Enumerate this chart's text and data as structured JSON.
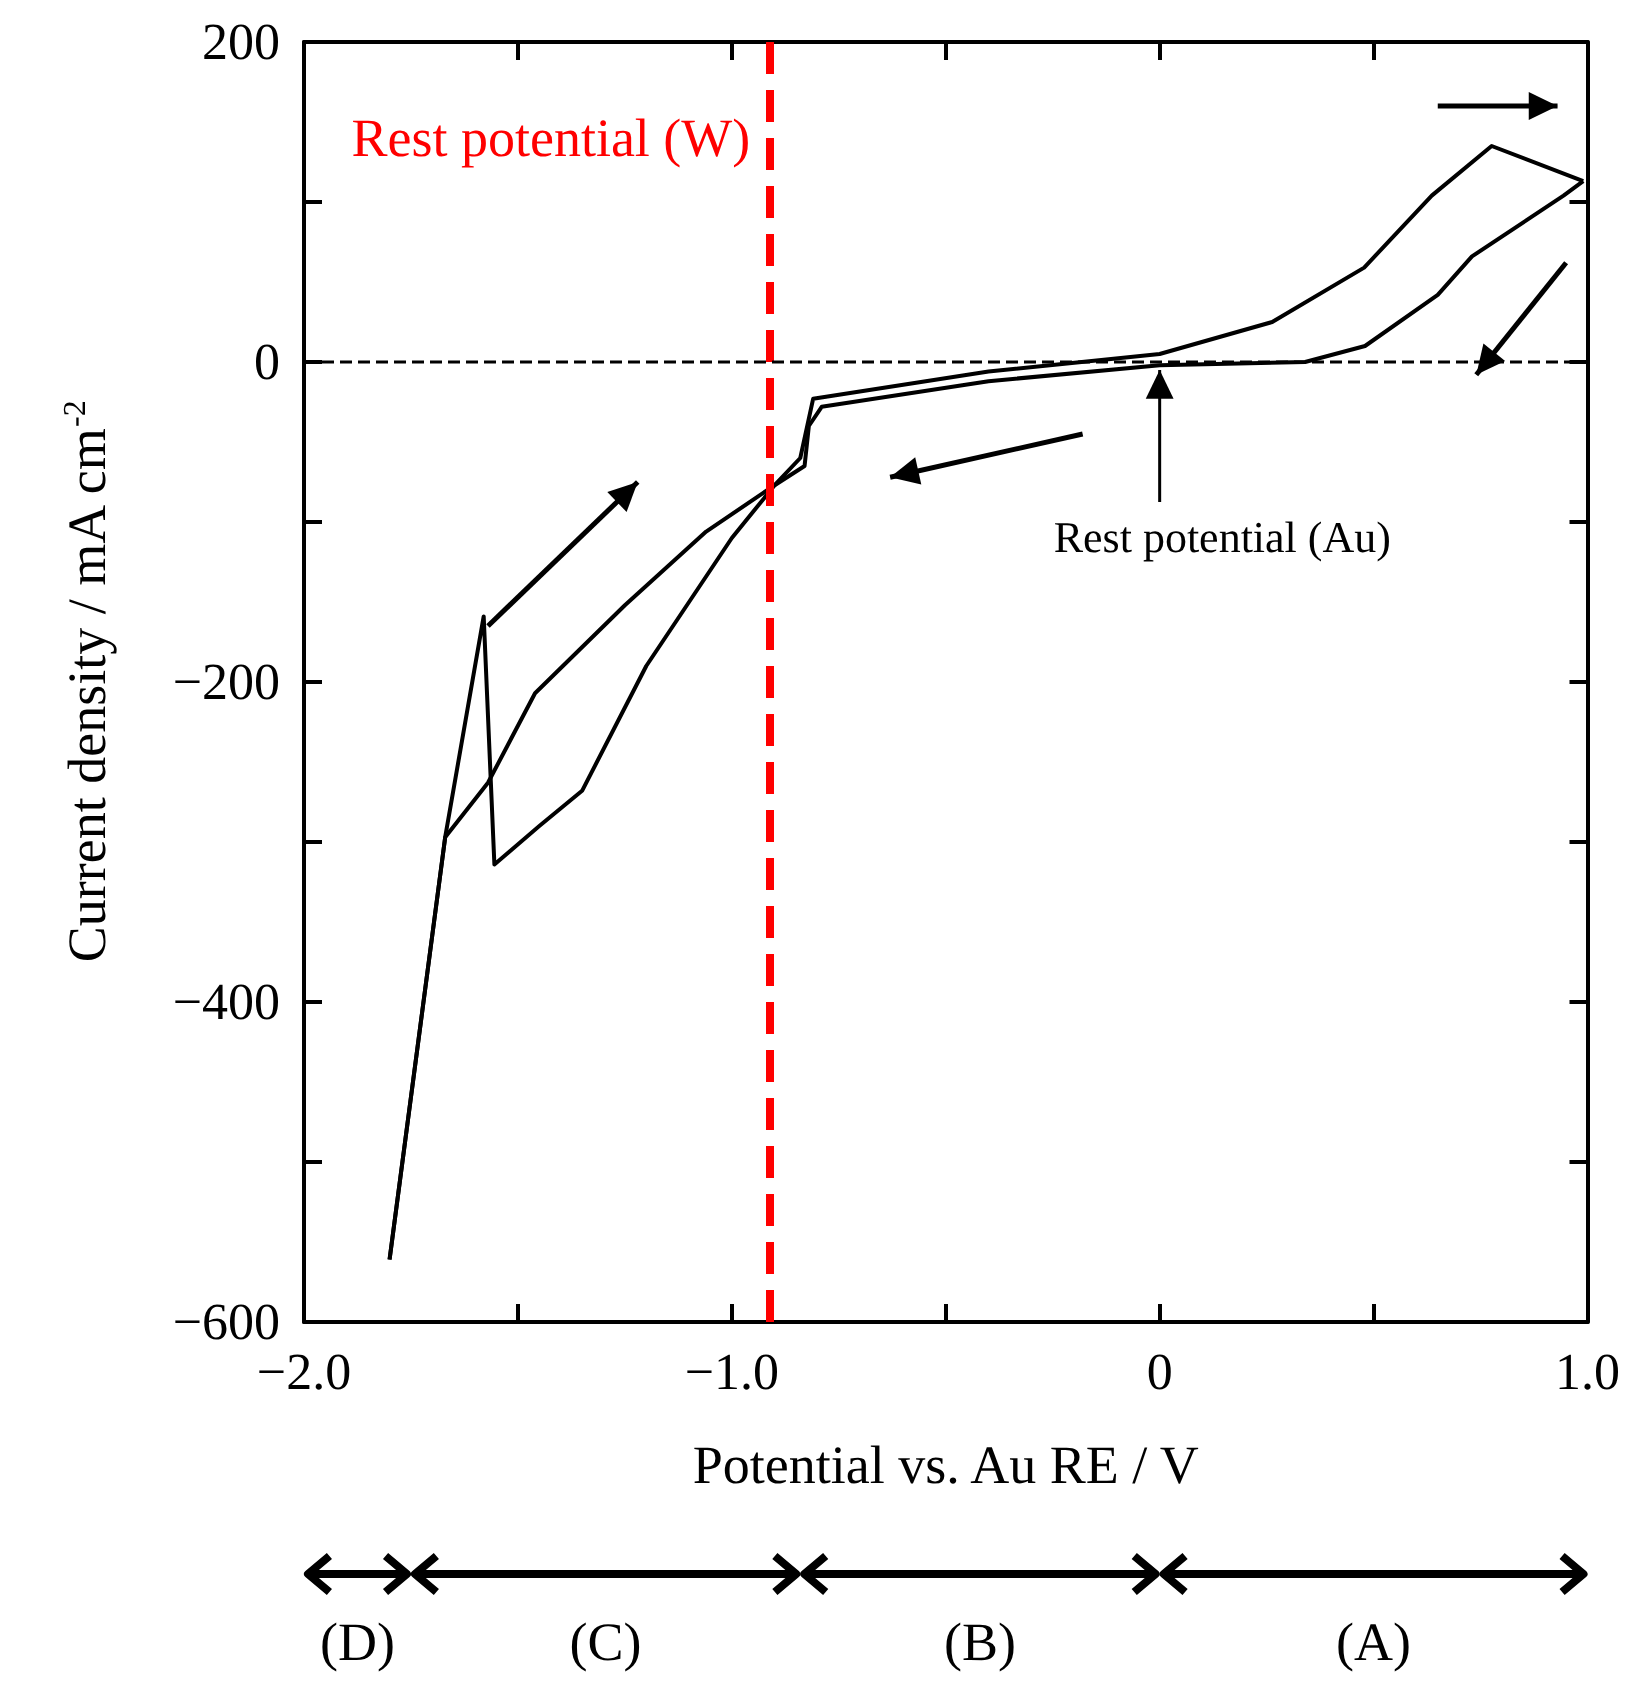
{
  "chart_data": {
    "type": "line",
    "xlabel": "Potential vs. Au RE / V",
    "ylabel": "Current density / mA cm$^{-2}$",
    "xlim": [
      -2,
      1
    ],
    "ylim": [
      -600,
      200
    ],
    "xticks": [
      {
        "value": -2,
        "label": "−2.0"
      },
      {
        "value": -1.5,
        "label": null
      },
      {
        "value": -1,
        "label": "−1.0"
      },
      {
        "value": -0.5,
        "label": null
      },
      {
        "value": 0,
        "label": "0"
      },
      {
        "value": 0.5,
        "label": null
      },
      {
        "value": 1,
        "label": "1.0"
      }
    ],
    "yticks": [
      {
        "value": -600,
        "label": "−600"
      },
      {
        "value": -500,
        "label": null
      },
      {
        "value": -400,
        "label": "−400"
      },
      {
        "value": -300,
        "label": null
      },
      {
        "value": -200,
        "label": "−200"
      },
      {
        "value": -100,
        "label": null
      },
      {
        "value": 0,
        "label": "0"
      },
      {
        "value": 100,
        "label": null
      },
      {
        "value": 200,
        "label": "200"
      }
    ],
    "series": [
      {
        "color": "#000000",
        "x": [
          0.99,
          0.944,
          0.73,
          0.65,
          0.48,
          0.34,
          0,
          -0.4,
          -0.79,
          -0.82,
          -0.83,
          -0.9,
          -1,
          -1.1,
          -1.2,
          -1.35,
          -1.45,
          -1.555,
          -1.58,
          -1.67,
          -1.8
        ],
        "values": [
          113,
          104,
          66,
          42,
          10,
          0,
          -2,
          -12,
          -28,
          -40,
          -65,
          -77,
          -110,
          -150,
          -190,
          -268,
          -290,
          -314,
          -159,
          -297,
          -561
        ]
      },
      {
        "color": "#000000",
        "x": [
          -1.8,
          -1.67,
          -1.62,
          -1.57,
          -1.46,
          -1.25,
          -1.06,
          -0.9,
          -0.84,
          -0.81,
          -0.4,
          0,
          0.263,
          0.478,
          0.636,
          0.776,
          0.99
        ],
        "values": [
          -561,
          -297,
          -280,
          -263,
          -207,
          -152,
          -106,
          -77,
          -60,
          -23,
          -6,
          5,
          25,
          59,
          104,
          135,
          113
        ]
      }
    ],
    "ref_lines": [
      {
        "axis": "x",
        "value": -0.91,
        "label": "Rest potential (W)",
        "color": "#ff0000",
        "line_style": "dashed"
      },
      {
        "axis": "y",
        "value": 0,
        "color": "#000000",
        "line_style": "dashed"
      }
    ],
    "annotations": [
      {
        "text": "Rest potential (Au)",
        "x": 0,
        "y": 0
      },
      "(D)",
      "(C)",
      "(B)",
      "(A)"
    ]
  }
}
